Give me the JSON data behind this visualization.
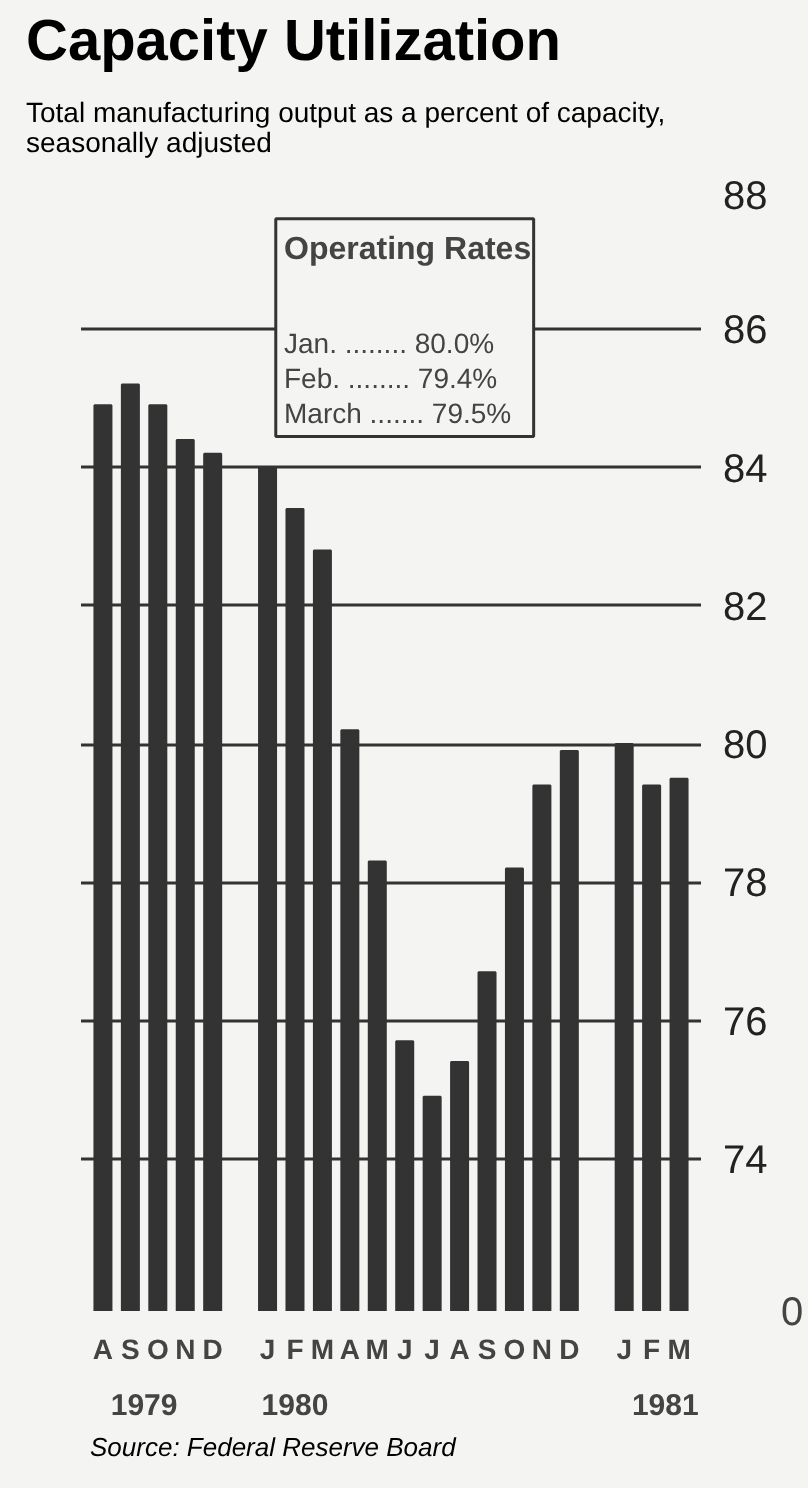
{
  "chart_data": {
    "type": "bar",
    "title": "Capacity Utilization",
    "subtitle": "Total manufacturing output as a percent of capacity, seasonally adjusted",
    "categories": [
      "A",
      "S",
      "O",
      "N",
      "D",
      null,
      "J",
      "F",
      "M",
      "A",
      "M",
      "J",
      "J",
      "A",
      "S",
      "O",
      "N",
      "D",
      null,
      "J",
      "F",
      "M"
    ],
    "values": [
      84.9,
      85.2,
      84.9,
      84.4,
      84.2,
      null,
      84.0,
      83.4,
      82.8,
      80.2,
      78.3,
      75.7,
      74.9,
      75.4,
      76.7,
      78.2,
      79.4,
      79.9,
      null,
      80.0,
      79.4,
      79.5
    ],
    "color": "#333333",
    "ylim": [
      71.8,
      88
    ],
    "yticks": [
      74,
      76,
      78,
      80,
      82,
      84,
      86,
      88
    ],
    "grid": "y",
    "annotations": [
      "Operating Rates",
      "Jan. ........ 80.0%",
      "Feb. ........ 79.4%",
      "March ....... 79.5%",
      "1979",
      "1980",
      "1981",
      "0",
      "Source: Federal Reserve Board"
    ]
  }
}
